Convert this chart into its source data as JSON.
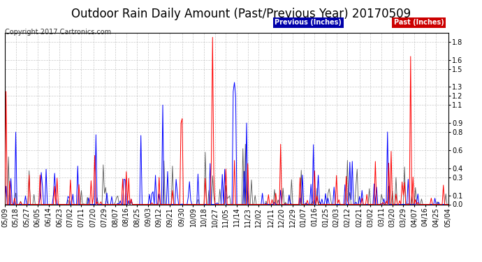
{
  "title": "Outdoor Rain Daily Amount (Past/Previous Year) 20170509",
  "copyright": "Copyright 2017 Cartronics.com",
  "legend_labels": [
    "Previous (Inches)",
    "Past (Inches)"
  ],
  "legend_bg_colors": [
    "#0000AA",
    "#CC0000"
  ],
  "ylim": [
    0.0,
    1.9
  ],
  "yticks": [
    0.0,
    0.1,
    0.3,
    0.4,
    0.6,
    0.8,
    0.9,
    1.1,
    1.2,
    1.3,
    1.5,
    1.6,
    1.8
  ],
  "background_color": "#FFFFFF",
  "plot_bg_color": "#FFFFFF",
  "grid_color": "#BBBBBB",
  "line_color_prev": "#0000FF",
  "line_color_past": "#FF0000",
  "line_color_black": "#555555",
  "title_fontsize": 12,
  "tick_fontsize": 7,
  "copyright_fontsize": 7,
  "x_tick_labels": [
    "05/09",
    "05/18",
    "05/27",
    "06/05",
    "06/14",
    "06/23",
    "07/02",
    "07/11",
    "07/20",
    "07/29",
    "08/07",
    "08/16",
    "08/25",
    "09/03",
    "09/12",
    "09/21",
    "09/30",
    "10/09",
    "10/18",
    "10/27",
    "11/05",
    "11/14",
    "11/23",
    "12/02",
    "12/11",
    "12/20",
    "12/29",
    "01/07",
    "01/16",
    "01/25",
    "02/03",
    "02/12",
    "02/21",
    "03/02",
    "03/11",
    "03/20",
    "03/29",
    "04/07",
    "04/16",
    "04/25",
    "05/04"
  ],
  "n_days": 366
}
